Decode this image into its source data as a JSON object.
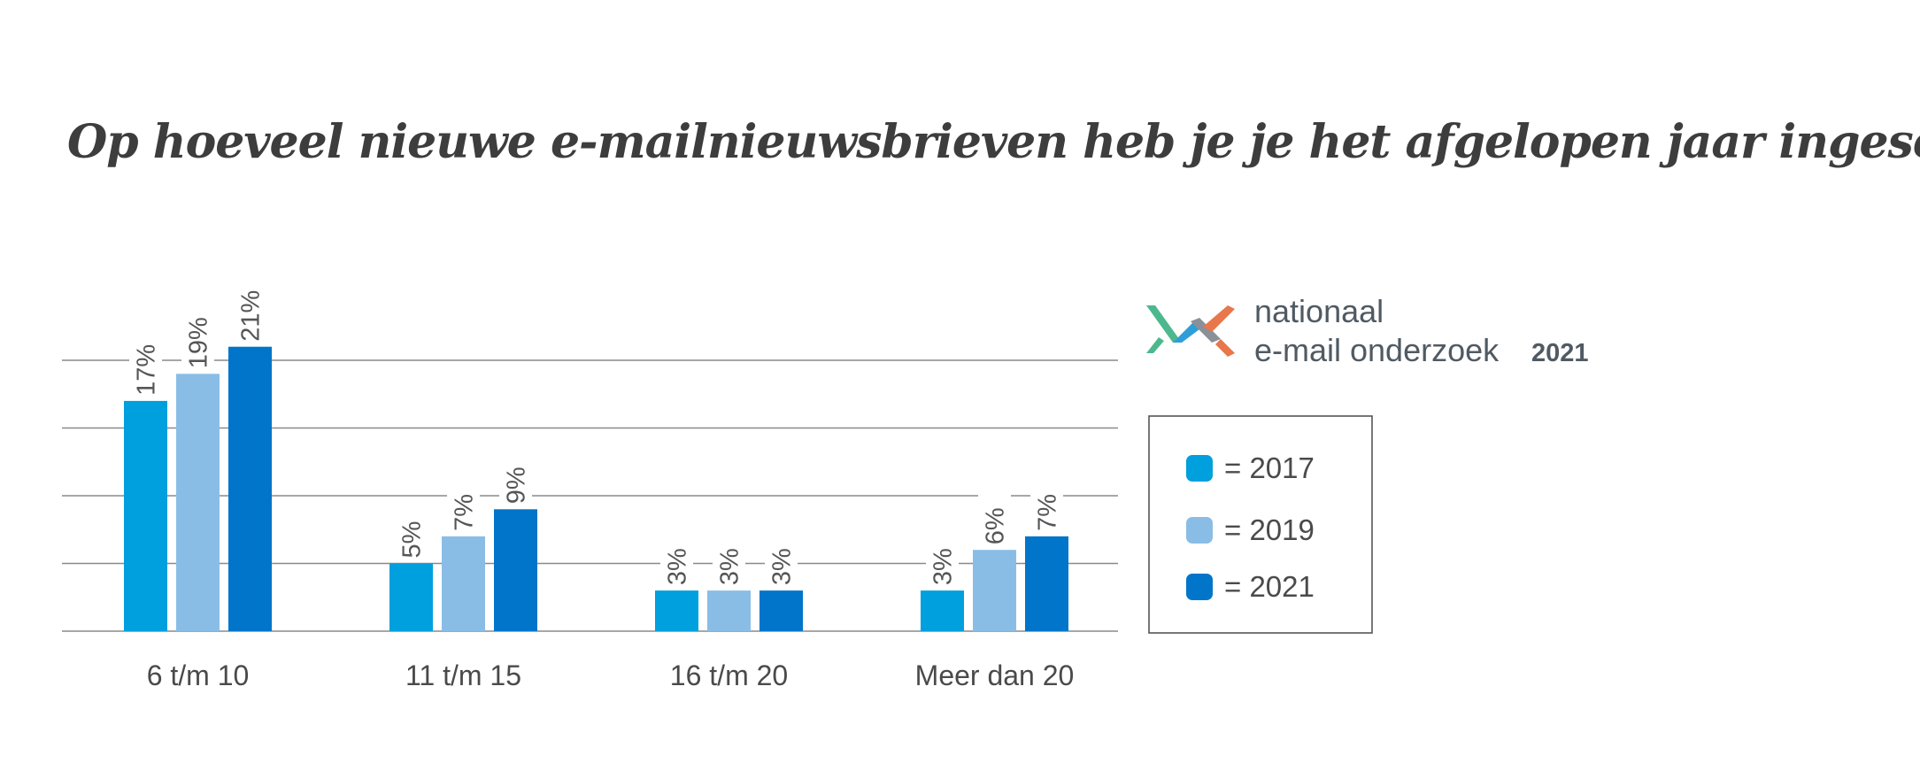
{
  "chart_data": {
    "type": "bar",
    "title": "Op hoeveel nieuwe e-mailnieuwsbrieven heb je je het afgelopen jaar ingeschreven?",
    "categories": [
      "6 t/m 10",
      "11 t/m 15",
      "16 t/m 20",
      "Meer dan 20"
    ],
    "series": [
      {
        "name": "2017",
        "values": [
          17,
          5,
          3,
          3
        ],
        "color": "#009fde"
      },
      {
        "name": "2019",
        "values": [
          19,
          7,
          3,
          6
        ],
        "color": "#8abde6"
      },
      {
        "name": "2021",
        "values": [
          21,
          9,
          3,
          7
        ],
        "color": "#0075c9"
      }
    ],
    "data_labels": [
      [
        "17%",
        "5%",
        "3%",
        "3%"
      ],
      [
        "19%",
        "7%",
        "3%",
        "6%"
      ],
      [
        "21%",
        "9%",
        "3%",
        "7%"
      ]
    ],
    "ylim": [
      0,
      20
    ],
    "gridlines": [
      5,
      10,
      15,
      20
    ],
    "grid": true,
    "legend_position": "right",
    "legend_entries": [
      "= 2017",
      "= 2019",
      "= 2021"
    ]
  },
  "brand": {
    "line1": "nationaal",
    "line2": "e-mail onderzoek",
    "year": "2021",
    "logo_icon": "envelope-m-logo-icon",
    "logo_colors": [
      "#4db88e",
      "#2f9ed8",
      "#8a9097",
      "#e8774b"
    ]
  }
}
